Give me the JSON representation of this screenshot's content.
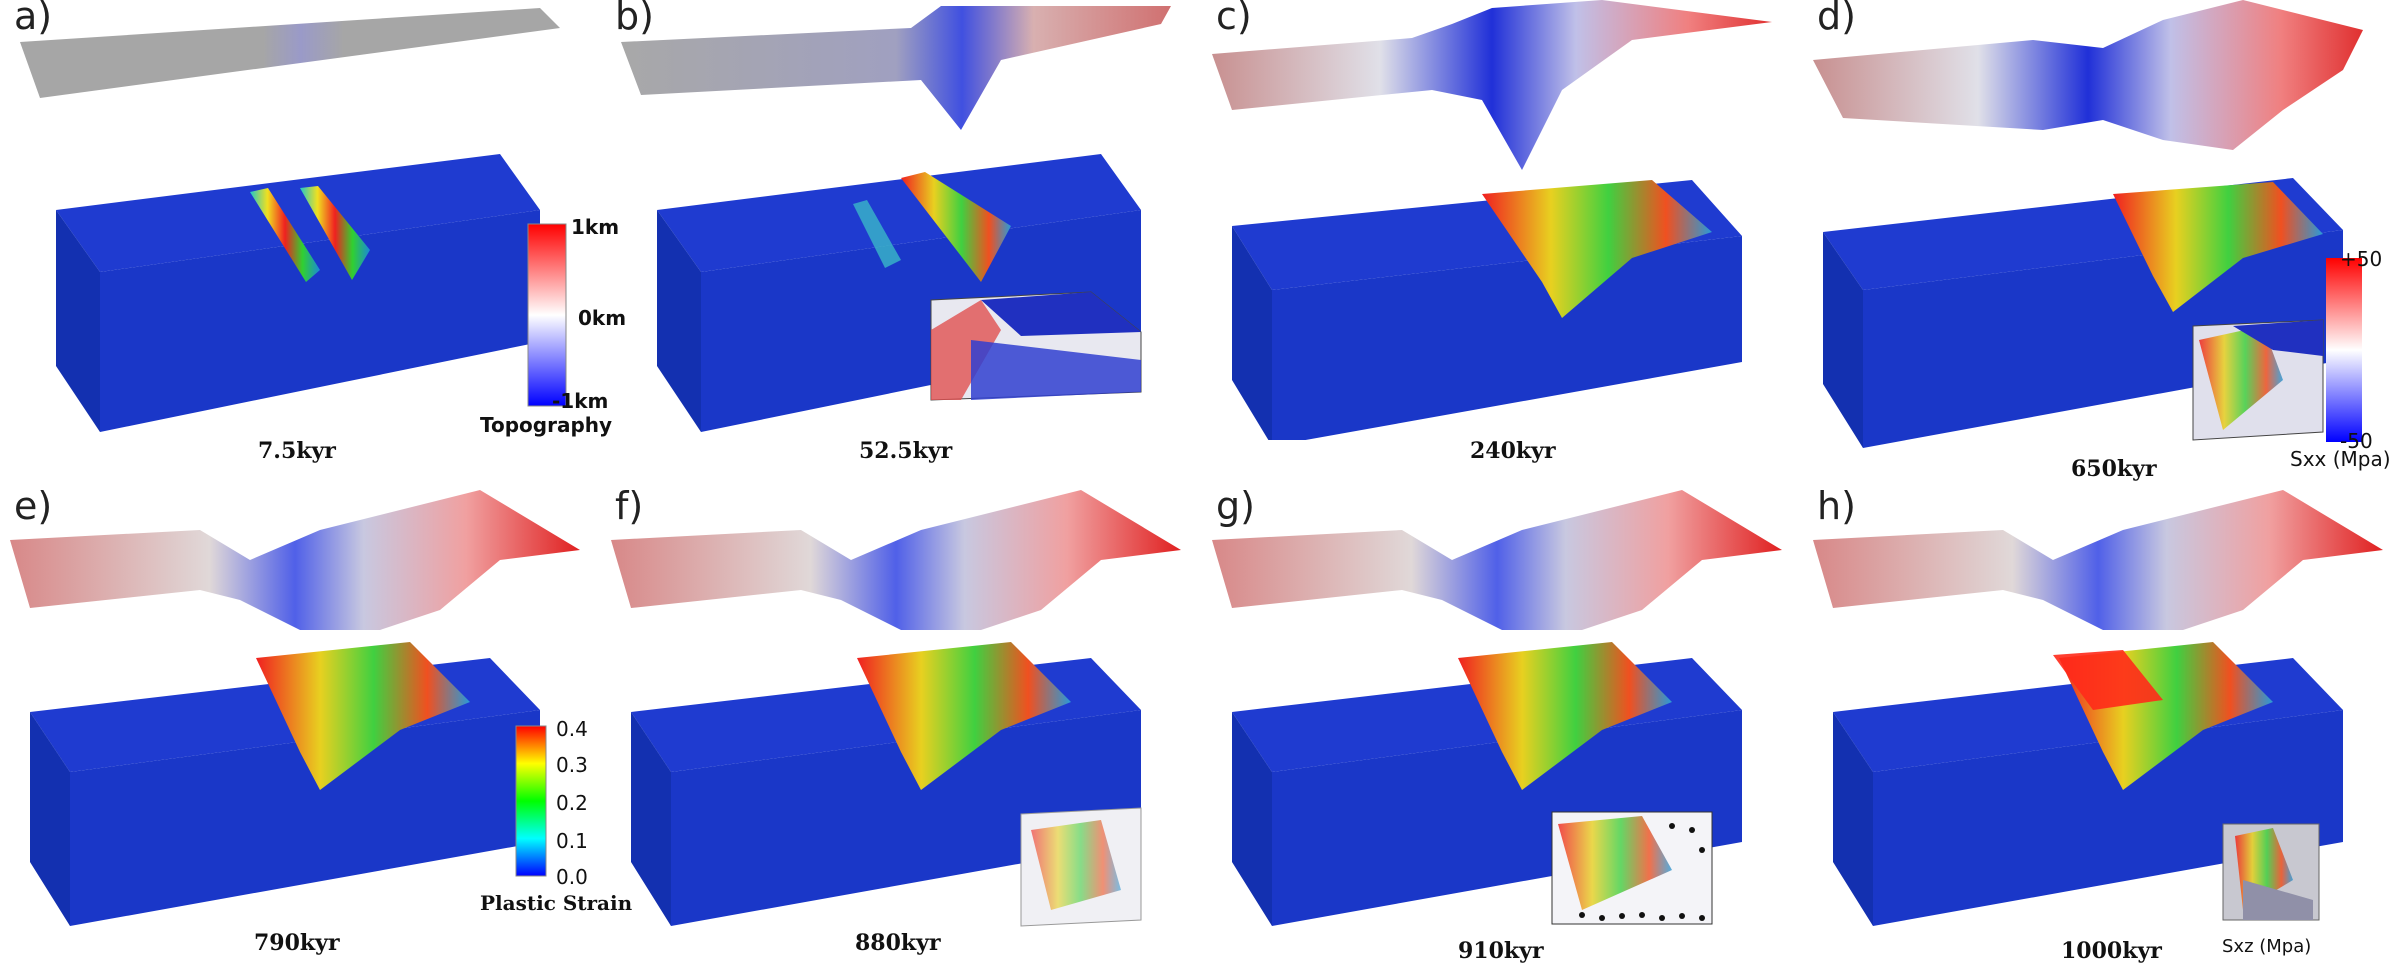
{
  "panels": [
    {
      "letter": "a)",
      "time": "7.5kyr"
    },
    {
      "letter": "b)",
      "time": "52.5kyr"
    },
    {
      "letter": "c)",
      "time": "240kyr"
    },
    {
      "letter": "d)",
      "time": "650kyr"
    },
    {
      "letter": "e)",
      "time": "790kyr"
    },
    {
      "letter": "f)",
      "time": "880kyr"
    },
    {
      "letter": "g)",
      "time": "910kyr"
    },
    {
      "letter": "h)",
      "time": "1000kyr"
    }
  ],
  "topography_colorbar": {
    "title": "Topography",
    "max": "1km",
    "mid": "0km",
    "min": "-1km",
    "colors": [
      "#ff0000",
      "#ffffff",
      "#0000ff"
    ]
  },
  "sxx_colorbar": {
    "title": "Sxx (Mpa)",
    "max": "+50",
    "min": "-50",
    "colors": [
      "#ff0000",
      "#ffffff",
      "#0000ff"
    ]
  },
  "strain_colorbar": {
    "title": "Plastic Strain",
    "ticks": [
      "0.4",
      "0.3",
      "0.2",
      "0.1",
      "0.0"
    ],
    "colors": [
      "#ff0000",
      "#ffff00",
      "#00ff00",
      "#00ffff",
      "#0000ff"
    ]
  },
  "sxz_inset": {
    "title": "Sxz (Mpa)"
  }
}
